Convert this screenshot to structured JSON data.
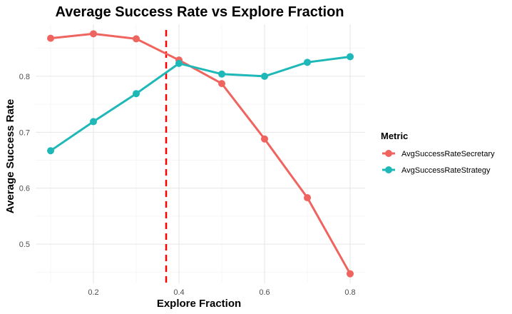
{
  "chart_data": {
    "type": "line",
    "title": "Average Success Rate vs Explore Fraction",
    "xlabel": "Explore Fraction",
    "ylabel": "Average Success Rate",
    "x": [
      0.1,
      0.2,
      0.3,
      0.4,
      0.5,
      0.6,
      0.7,
      0.8
    ],
    "x_ticks": [
      "0.2",
      "0.4",
      "0.6",
      "0.8"
    ],
    "y_ticks": [
      "0.5",
      "0.6",
      "0.7",
      "0.8"
    ],
    "xlim": [
      0.065,
      0.835
    ],
    "ylim": [
      0.43,
      0.893
    ],
    "grid": true,
    "legend": {
      "title": "Metric",
      "position": "right"
    },
    "series": [
      {
        "name": "AvgSuccessRateSecretary",
        "color": "#F0645F",
        "values": [
          0.868,
          0.876,
          0.867,
          0.829,
          0.787,
          0.688,
          0.583,
          0.447
        ]
      },
      {
        "name": "AvgSuccessRateStrategy",
        "color": "#1FB8B8",
        "values": [
          0.667,
          0.719,
          0.769,
          0.823,
          0.804,
          0.8,
          0.825,
          0.835
        ]
      }
    ],
    "vline": {
      "x": 0.37,
      "color": "#FF0000",
      "style": "dashed"
    }
  }
}
